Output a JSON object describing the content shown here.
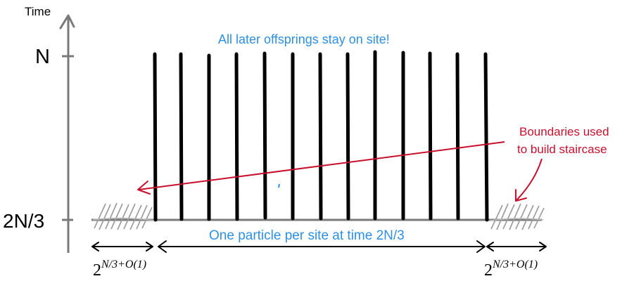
{
  "axis": {
    "label": "Time",
    "tick_top": "N",
    "tick_bottom": "2N/3"
  },
  "annotations": {
    "top_caption": "All later offsprings stay on site!",
    "bottom_caption": "One particle per site at time 2N/3",
    "boundaries_line1": "Boundaries used",
    "boundaries_line2": "to build staircase"
  },
  "widths": {
    "left_base": "2",
    "left_exp": "N/3+O(1)",
    "right_base": "2",
    "right_exp": "N/3+O(1)"
  },
  "colors": {
    "axis": "#7a7a7a",
    "bars": "#000000",
    "blue_text": "#2f8fe0",
    "red": "#c8102e",
    "hatch": "#9a9a9a"
  }
}
